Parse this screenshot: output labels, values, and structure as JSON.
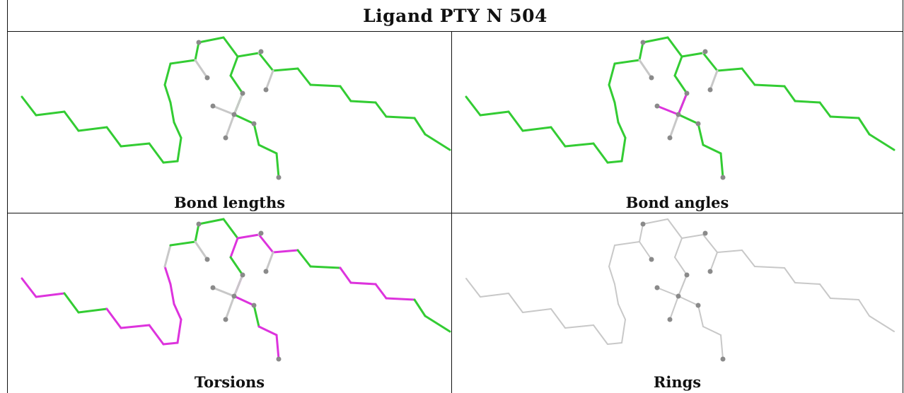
{
  "table_title": "Ligand PTY N 504",
  "colors": {
    "ok": "#33cc33",
    "outlier": "#dd33dd",
    "neutral": "#c8c8c8",
    "atom": "#8a8a8a",
    "border": "#111111"
  },
  "panels": [
    {
      "key": "bond_lengths",
      "caption": "Bond lengths",
      "mode": "colored",
      "highlight": []
    },
    {
      "key": "bond_angles",
      "caption": "Bond angles",
      "mode": "colored",
      "highlight": [
        "t1",
        "t3"
      ]
    },
    {
      "key": "torsions",
      "caption": "Torsions",
      "mode": "colored",
      "highlight": [
        "a1",
        "a2",
        "a5",
        "a6",
        "a7",
        "a8",
        "a9",
        "a10",
        "a11",
        "a12",
        "b1",
        "b2",
        "b3",
        "b6",
        "b7",
        "b8",
        "b9",
        "c1",
        "c3",
        "d1",
        "d3",
        "d4",
        "d5",
        "d6",
        "d9",
        "d10",
        "d11",
        "d12",
        "d13"
      ],
      "gray": [
        "a13",
        "d14",
        "c4",
        "t2"
      ]
    },
    {
      "key": "rings",
      "caption": "Rings",
      "mode": "gray",
      "highlight": []
    }
  ]
}
